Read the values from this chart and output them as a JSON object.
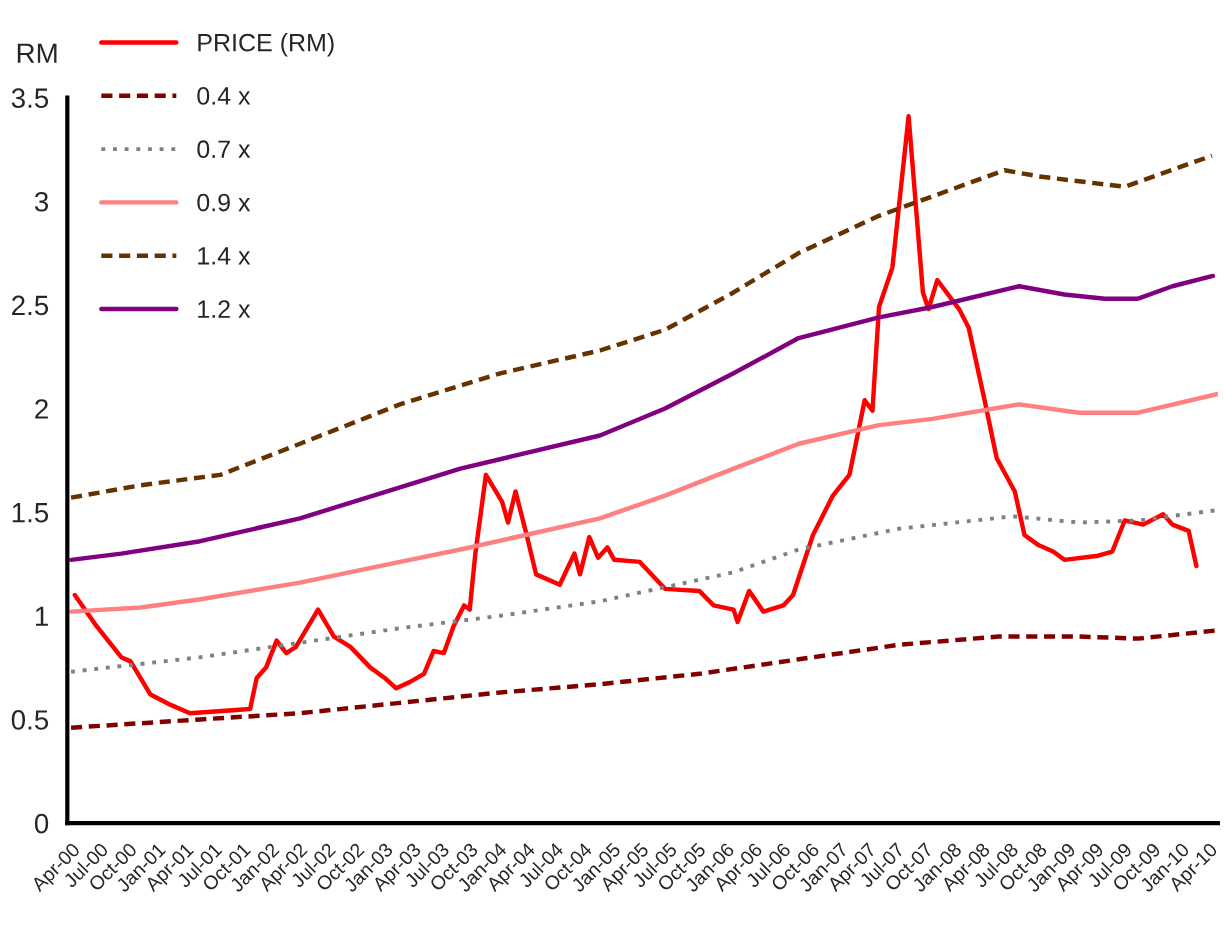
{
  "chart_data": {
    "type": "line",
    "ylabel": "RM",
    "ylim": [
      0,
      3.5
    ],
    "yticks": [
      0,
      0.5,
      1,
      1.5,
      2,
      2.5,
      3,
      3.5
    ],
    "xlim": [
      "2000-03-20",
      "2010-05-01"
    ],
    "xticks": [
      {
        "value": "2000-04",
        "label": "Apr-00"
      },
      {
        "value": "2000-07",
        "label": "Jul-00"
      },
      {
        "value": "2000-10",
        "label": "Oct-00"
      },
      {
        "value": "2001-01",
        "label": "Jan-01"
      },
      {
        "value": "2001-04",
        "label": "Apr-01"
      },
      {
        "value": "2001-07",
        "label": "Jul-01"
      },
      {
        "value": "2001-10",
        "label": "Oct-01"
      },
      {
        "value": "2002-01",
        "label": "Jan-02"
      },
      {
        "value": "2002-04",
        "label": "Apr-02"
      },
      {
        "value": "2002-07",
        "label": "Jul-02"
      },
      {
        "value": "2002-10",
        "label": "Oct-02"
      },
      {
        "value": "2003-01",
        "label": "Jan-03"
      },
      {
        "value": "2003-04",
        "label": "Apr-03"
      },
      {
        "value": "2003-07",
        "label": "Jul-03"
      },
      {
        "value": "2003-10",
        "label": "Oct-03"
      },
      {
        "value": "2004-01",
        "label": "Jan-04"
      },
      {
        "value": "2004-04",
        "label": "Apr-04"
      },
      {
        "value": "2004-07",
        "label": "Jul-04"
      },
      {
        "value": "2004-10",
        "label": "Oct-04"
      },
      {
        "value": "2005-01",
        "label": "Jan-05"
      },
      {
        "value": "2005-04",
        "label": "Apr-05"
      },
      {
        "value": "2005-07",
        "label": "Jul-05"
      },
      {
        "value": "2005-10",
        "label": "Oct-05"
      },
      {
        "value": "2006-01",
        "label": "Jan-06"
      },
      {
        "value": "2006-04",
        "label": "Apr-06"
      },
      {
        "value": "2006-07",
        "label": "Jul-06"
      },
      {
        "value": "2006-10",
        "label": "Oct-06"
      },
      {
        "value": "2007-01",
        "label": "Jan-07"
      },
      {
        "value": "2007-04",
        "label": "Apr-07"
      },
      {
        "value": "2007-07",
        "label": "Jul-07"
      },
      {
        "value": "2007-10",
        "label": "Oct-07"
      },
      {
        "value": "2008-01",
        "label": "Jan-08"
      },
      {
        "value": "2008-04",
        "label": "Apr-08"
      },
      {
        "value": "2008-07",
        "label": "Jul-08"
      },
      {
        "value": "2008-10",
        "label": "Oct-08"
      },
      {
        "value": "2009-01",
        "label": "Jan-09"
      },
      {
        "value": "2009-04",
        "label": "Apr-09"
      },
      {
        "value": "2009-07",
        "label": "Jul-09"
      },
      {
        "value": "2009-10",
        "label": "Oct-09"
      },
      {
        "value": "2010-01",
        "label": "Jan-10"
      },
      {
        "value": "2010-04",
        "label": "Apr-10"
      }
    ],
    "grid": false,
    "legend": "top left",
    "marker": "none",
    "series": [
      {
        "name": "PRICE (RM)",
        "color": "#ff0000",
        "line_style": "solid",
        "x": [
          "2000-04-13",
          "2000-06-22",
          "2000-09-09",
          "2000-10-09",
          "2000-12-12",
          "2001-02-15",
          "2001-04-18",
          "2001-10-28",
          "2001-11-18",
          "2001-12-18",
          "2002-01-21",
          "2002-02-21",
          "2002-03-24",
          "2002-06-03",
          "2002-07-24",
          "2002-09-15",
          "2002-11-18",
          "2003-01-03",
          "2003-02-09",
          "2003-03-24",
          "2003-05-09",
          "2003-06-09",
          "2003-07-12",
          "2003-08-12",
          "2003-09-15",
          "2003-10-03",
          "2003-10-21",
          "2003-11-24",
          "2004-01-15",
          "2004-02-03",
          "2004-02-27",
          "2004-04-01",
          "2004-05-03",
          "2004-07-18",
          "2004-09-03",
          "2004-09-21",
          "2004-10-21",
          "2004-11-18",
          "2004-12-18",
          "2005-01-09",
          "2005-04-01",
          "2005-06-21",
          "2005-10-09",
          "2005-11-24",
          "2006-01-27",
          "2006-02-09",
          "2006-03-18",
          "2006-05-03",
          "2006-07-06",
          "2006-08-06",
          "2006-10-09",
          "2006-12-12",
          "2007-02-03",
          "2007-03-24",
          "2007-04-18",
          "2007-05-09",
          "2007-06-21",
          "2007-08-12",
          "2007-09-27",
          "2007-10-15",
          "2007-11-12",
          "2008-01-21",
          "2008-02-21",
          "2008-04-12",
          "2008-05-21",
          "2008-07-18",
          "2008-08-18",
          "2008-10-03",
          "2008-11-18",
          "2008-12-24",
          "2009-04-12",
          "2009-05-27",
          "2009-07-06",
          "2009-09-03",
          "2009-11-06",
          "2009-12-06",
          "2010-01-27",
          "2010-02-21"
        ],
        "values": [
          1.1,
          0.95,
          0.8,
          0.78,
          0.62,
          0.57,
          0.53,
          0.55,
          0.7,
          0.75,
          0.88,
          0.82,
          0.85,
          1.03,
          0.9,
          0.85,
          0.75,
          0.7,
          0.65,
          0.68,
          0.72,
          0.83,
          0.82,
          0.95,
          1.05,
          1.03,
          1.3,
          1.68,
          1.55,
          1.45,
          1.6,
          1.4,
          1.2,
          1.15,
          1.3,
          1.2,
          1.38,
          1.28,
          1.33,
          1.27,
          1.26,
          1.13,
          1.12,
          1.05,
          1.03,
          0.97,
          1.12,
          1.02,
          1.05,
          1.1,
          1.39,
          1.58,
          1.68,
          2.04,
          1.99,
          2.49,
          2.68,
          3.41,
          2.56,
          2.48,
          2.62,
          2.48,
          2.39,
          2.04,
          1.76,
          1.6,
          1.39,
          1.34,
          1.31,
          1.27,
          1.29,
          1.31,
          1.46,
          1.44,
          1.49,
          1.44,
          1.41,
          1.24
        ]
      },
      {
        "name": "0.4 x",
        "color": "#800000",
        "line_style": "dashed",
        "x": [
          "2000-04-01",
          "2001-05-21",
          "2002-04-06",
          "2003-02-21",
          "2004-01-09",
          "2004-11-24",
          "2005-10-09",
          "2006-08-24",
          "2007-07-12",
          "2008-05-27",
          "2009-02-09",
          "2009-08-18",
          "2010-05-01"
        ],
        "values": [
          0.46,
          0.5,
          0.53,
          0.58,
          0.63,
          0.67,
          0.72,
          0.79,
          0.86,
          0.9,
          0.9,
          0.89,
          0.93
        ]
      },
      {
        "name": "0.7 x",
        "color": "#808080",
        "line_style": "dotted",
        "x": [
          "2000-04-01",
          "2001-05-21",
          "2002-04-06",
          "2003-02-21",
          "2004-01-09",
          "2004-11-24",
          "2006-01-27",
          "2006-08-24",
          "2007-07-12",
          "2008-07-12",
          "2009-02-09",
          "2009-08-18",
          "2010-05-01"
        ],
        "values": [
          0.73,
          0.8,
          0.87,
          0.94,
          1.0,
          1.07,
          1.21,
          1.32,
          1.42,
          1.48,
          1.45,
          1.46,
          1.51
        ]
      },
      {
        "name": "0.9 x",
        "color": "#ff8080",
        "line_style": "solid",
        "x": [
          "2000-04-01",
          "2000-11-11",
          "2001-05-21",
          "2002-04-06",
          "2003-02-21",
          "2003-09-03",
          "2004-11-24",
          "2005-06-21",
          "2006-01-27",
          "2006-08-24",
          "2007-05-09",
          "2007-10-27",
          "2008-08-01",
          "2009-02-09",
          "2009-08-18",
          "2010-05-01"
        ],
        "values": [
          1.02,
          1.04,
          1.08,
          1.16,
          1.26,
          1.32,
          1.47,
          1.58,
          1.71,
          1.83,
          1.92,
          1.95,
          2.02,
          1.98,
          1.98,
          2.07
        ]
      },
      {
        "name": "1.4 x",
        "color": "#663300",
        "line_style": "dashed",
        "x": [
          "2000-04-01",
          "2000-11-11",
          "2001-07-24",
          "2002-04-06",
          "2003-02-21",
          "2004-01-09",
          "2004-11-24",
          "2005-06-21",
          "2006-01-27",
          "2006-08-24",
          "2007-05-09",
          "2008-06-15",
          "2008-10-03",
          "2009-07-06",
          "2010-04-12"
        ],
        "values": [
          1.57,
          1.63,
          1.68,
          1.83,
          2.02,
          2.17,
          2.28,
          2.38,
          2.56,
          2.75,
          2.93,
          3.15,
          3.12,
          3.07,
          3.22
        ]
      },
      {
        "name": "1.2 x",
        "color": "#800080",
        "line_style": "solid",
        "x": [
          "2000-04-01",
          "2000-09-09",
          "2001-05-21",
          "2002-04-06",
          "2003-02-21",
          "2003-09-03",
          "2004-11-24",
          "2005-06-21",
          "2006-01-27",
          "2006-08-24",
          "2007-05-09",
          "2007-10-27",
          "2008-08-01",
          "2008-12-24",
          "2009-05-03",
          "2009-08-18",
          "2009-12-06",
          "2010-04-15"
        ],
        "values": [
          1.27,
          1.3,
          1.36,
          1.47,
          1.62,
          1.71,
          1.87,
          2.0,
          2.17,
          2.34,
          2.44,
          2.49,
          2.59,
          2.55,
          2.53,
          2.53,
          2.59,
          2.64
        ]
      }
    ]
  }
}
